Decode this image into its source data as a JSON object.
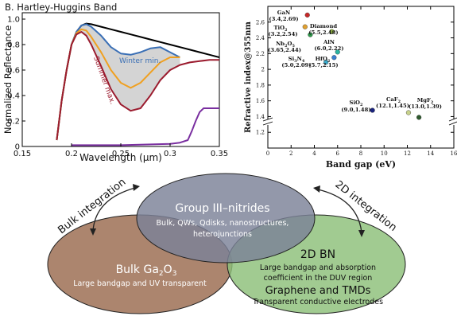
{
  "chart_data": [
    {
      "type": "line",
      "title": "B. Hartley-Huggins Band",
      "xlabel": "Wavelength (μm)",
      "ylabel": "Normalized Reflectance",
      "xlim": [
        0.15,
        0.35
      ],
      "ylim": [
        0.0,
        1.05
      ],
      "xticks": [
        "0.15",
        "0.2",
        "0.25",
        "0.3",
        "0.35"
      ],
      "yticks": [
        "0",
        "0.2",
        "0.4",
        "0.6",
        "0.8",
        "1.0"
      ],
      "annotations": [
        "Winter min.",
        "Summer max."
      ],
      "series": [
        {
          "color": "#000000",
          "x": [
            0.185,
            0.19,
            0.195,
            0.2,
            0.205,
            0.21,
            0.215,
            0.22,
            0.23,
            0.24,
            0.25,
            0.26,
            0.27,
            0.28,
            0.29,
            0.3,
            0.31,
            0.32,
            0.33,
            0.34,
            0.35
          ],
          "y": [
            0.05,
            0.36,
            0.6,
            0.8,
            0.9,
            0.95,
            0.965,
            0.96,
            0.94,
            0.92,
            0.9,
            0.88,
            0.86,
            0.84,
            0.82,
            0.8,
            0.78,
            0.76,
            0.74,
            0.72,
            0.7
          ]
        },
        {
          "name": "Winter min.",
          "color": "#3a6fb5",
          "x": [
            0.185,
            0.19,
            0.195,
            0.2,
            0.205,
            0.21,
            0.215,
            0.22,
            0.23,
            0.24,
            0.25,
            0.26,
            0.27,
            0.28,
            0.29,
            0.3,
            0.31
          ],
          "y": [
            0.05,
            0.36,
            0.6,
            0.8,
            0.9,
            0.95,
            0.96,
            0.94,
            0.87,
            0.78,
            0.73,
            0.72,
            0.74,
            0.77,
            0.78,
            0.74,
            0.7
          ]
        },
        {
          "color": "#f0a020",
          "x": [
            0.185,
            0.19,
            0.195,
            0.2,
            0.205,
            0.21,
            0.215,
            0.22,
            0.23,
            0.24,
            0.25,
            0.26,
            0.27,
            0.28,
            0.29,
            0.3,
            0.31
          ],
          "y": [
            0.05,
            0.36,
            0.6,
            0.8,
            0.89,
            0.92,
            0.91,
            0.86,
            0.74,
            0.6,
            0.5,
            0.46,
            0.5,
            0.58,
            0.66,
            0.7,
            0.7
          ]
        },
        {
          "name": "Summer max.",
          "color": "#9b1b2e",
          "x": [
            0.185,
            0.19,
            0.195,
            0.2,
            0.205,
            0.21,
            0.215,
            0.22,
            0.23,
            0.24,
            0.25,
            0.26,
            0.27,
            0.28,
            0.29,
            0.3,
            0.31,
            0.32,
            0.33,
            0.34,
            0.35
          ],
          "y": [
            0.05,
            0.36,
            0.6,
            0.8,
            0.88,
            0.9,
            0.87,
            0.8,
            0.63,
            0.45,
            0.33,
            0.28,
            0.3,
            0.4,
            0.52,
            0.6,
            0.64,
            0.66,
            0.67,
            0.68,
            0.68
          ]
        },
        {
          "color": "#7a2fa0",
          "x": [
            0.2,
            0.25,
            0.3,
            0.31,
            0.318,
            0.322,
            0.326,
            0.33,
            0.334,
            0.338,
            0.342,
            0.346,
            0.35
          ],
          "y": [
            0.01,
            0.01,
            0.02,
            0.03,
            0.05,
            0.12,
            0.2,
            0.27,
            0.3,
            0.3,
            0.3,
            0.3,
            0.3
          ]
        }
      ]
    },
    {
      "type": "scatter",
      "xlabel": "Band gap (eV)",
      "ylabel": "Refractive index@355nm",
      "xlim": [
        0,
        16
      ],
      "ylim": [
        1.0,
        2.8
      ],
      "xticks": [
        "0",
        "2",
        "4",
        "6",
        "8",
        "10",
        "12",
        "14",
        "16"
      ],
      "yticks": [
        "1.2",
        "1.4",
        "1.6",
        "1.8",
        "2",
        "2.2",
        "2.4",
        "2.6"
      ],
      "points": [
        {
          "name": "GaN",
          "value": "(3.4,2.69)",
          "x": 3.4,
          "y": 2.69,
          "color": "#c62828"
        },
        {
          "name": "TiO2",
          "value": "(3.2,2.54)",
          "x": 3.2,
          "y": 2.54,
          "color": "#e0a030"
        },
        {
          "name": "Diamond",
          "value": "(5.5,2.48)",
          "x": 5.5,
          "y": 2.48,
          "color": "#9cc24a"
        },
        {
          "name": "Nb2O5",
          "value": "(3.65,2.44)",
          "x": 3.65,
          "y": 2.44,
          "color": "#2e9b4a"
        },
        {
          "name": "AlN",
          "value": "(6.0,2.22)",
          "x": 6.0,
          "y": 2.22,
          "color": "#2ab3a0"
        },
        {
          "name": "Si3N4",
          "value": "(5.0,2.09)",
          "x": 5.0,
          "y": 2.09,
          "color": "#3aa8c8"
        },
        {
          "name": "HfO2",
          "value": "(5.7,2.15)",
          "x": 5.7,
          "y": 2.15,
          "color": "#3a7fd0"
        },
        {
          "name": "SiO2",
          "value": "(9.0,1.48)",
          "x": 9.0,
          "y": 1.48,
          "color": "#1a237e"
        },
        {
          "name": "CaF2",
          "value": "(12.1,1.45)",
          "x": 12.1,
          "y": 1.45,
          "color": "#c8d28a"
        },
        {
          "name": "MgF2",
          "value": "(13.0,1.39)",
          "x": 13.0,
          "y": 1.39,
          "color": "#2e5a2e"
        }
      ]
    }
  ],
  "venn": {
    "top": {
      "title": "Group III–nitrides",
      "line1": "Bulk, QWs, Qdisks, nanostructures,",
      "line2": "heterojunctions"
    },
    "left": {
      "title_main": "Bulk Ga",
      "title_sub1": "2",
      "title_o": "O",
      "title_sub2": "3",
      "desc": "Large bandgap and UV transparent"
    },
    "right": {
      "title1": "2D BN",
      "line1": "Large bandgap and absorption",
      "line2": "coefficient in the DUV region",
      "title2": "Graphene and TMDs",
      "line3": "Transparent conductive electrodes"
    },
    "left_arrow_label": "Bulk integration",
    "right_arrow_label": "2D integration"
  },
  "colors": {
    "top_circle": "#7b8197",
    "left_circle": "#9a6a4e",
    "right_circle": "#8cc079"
  }
}
